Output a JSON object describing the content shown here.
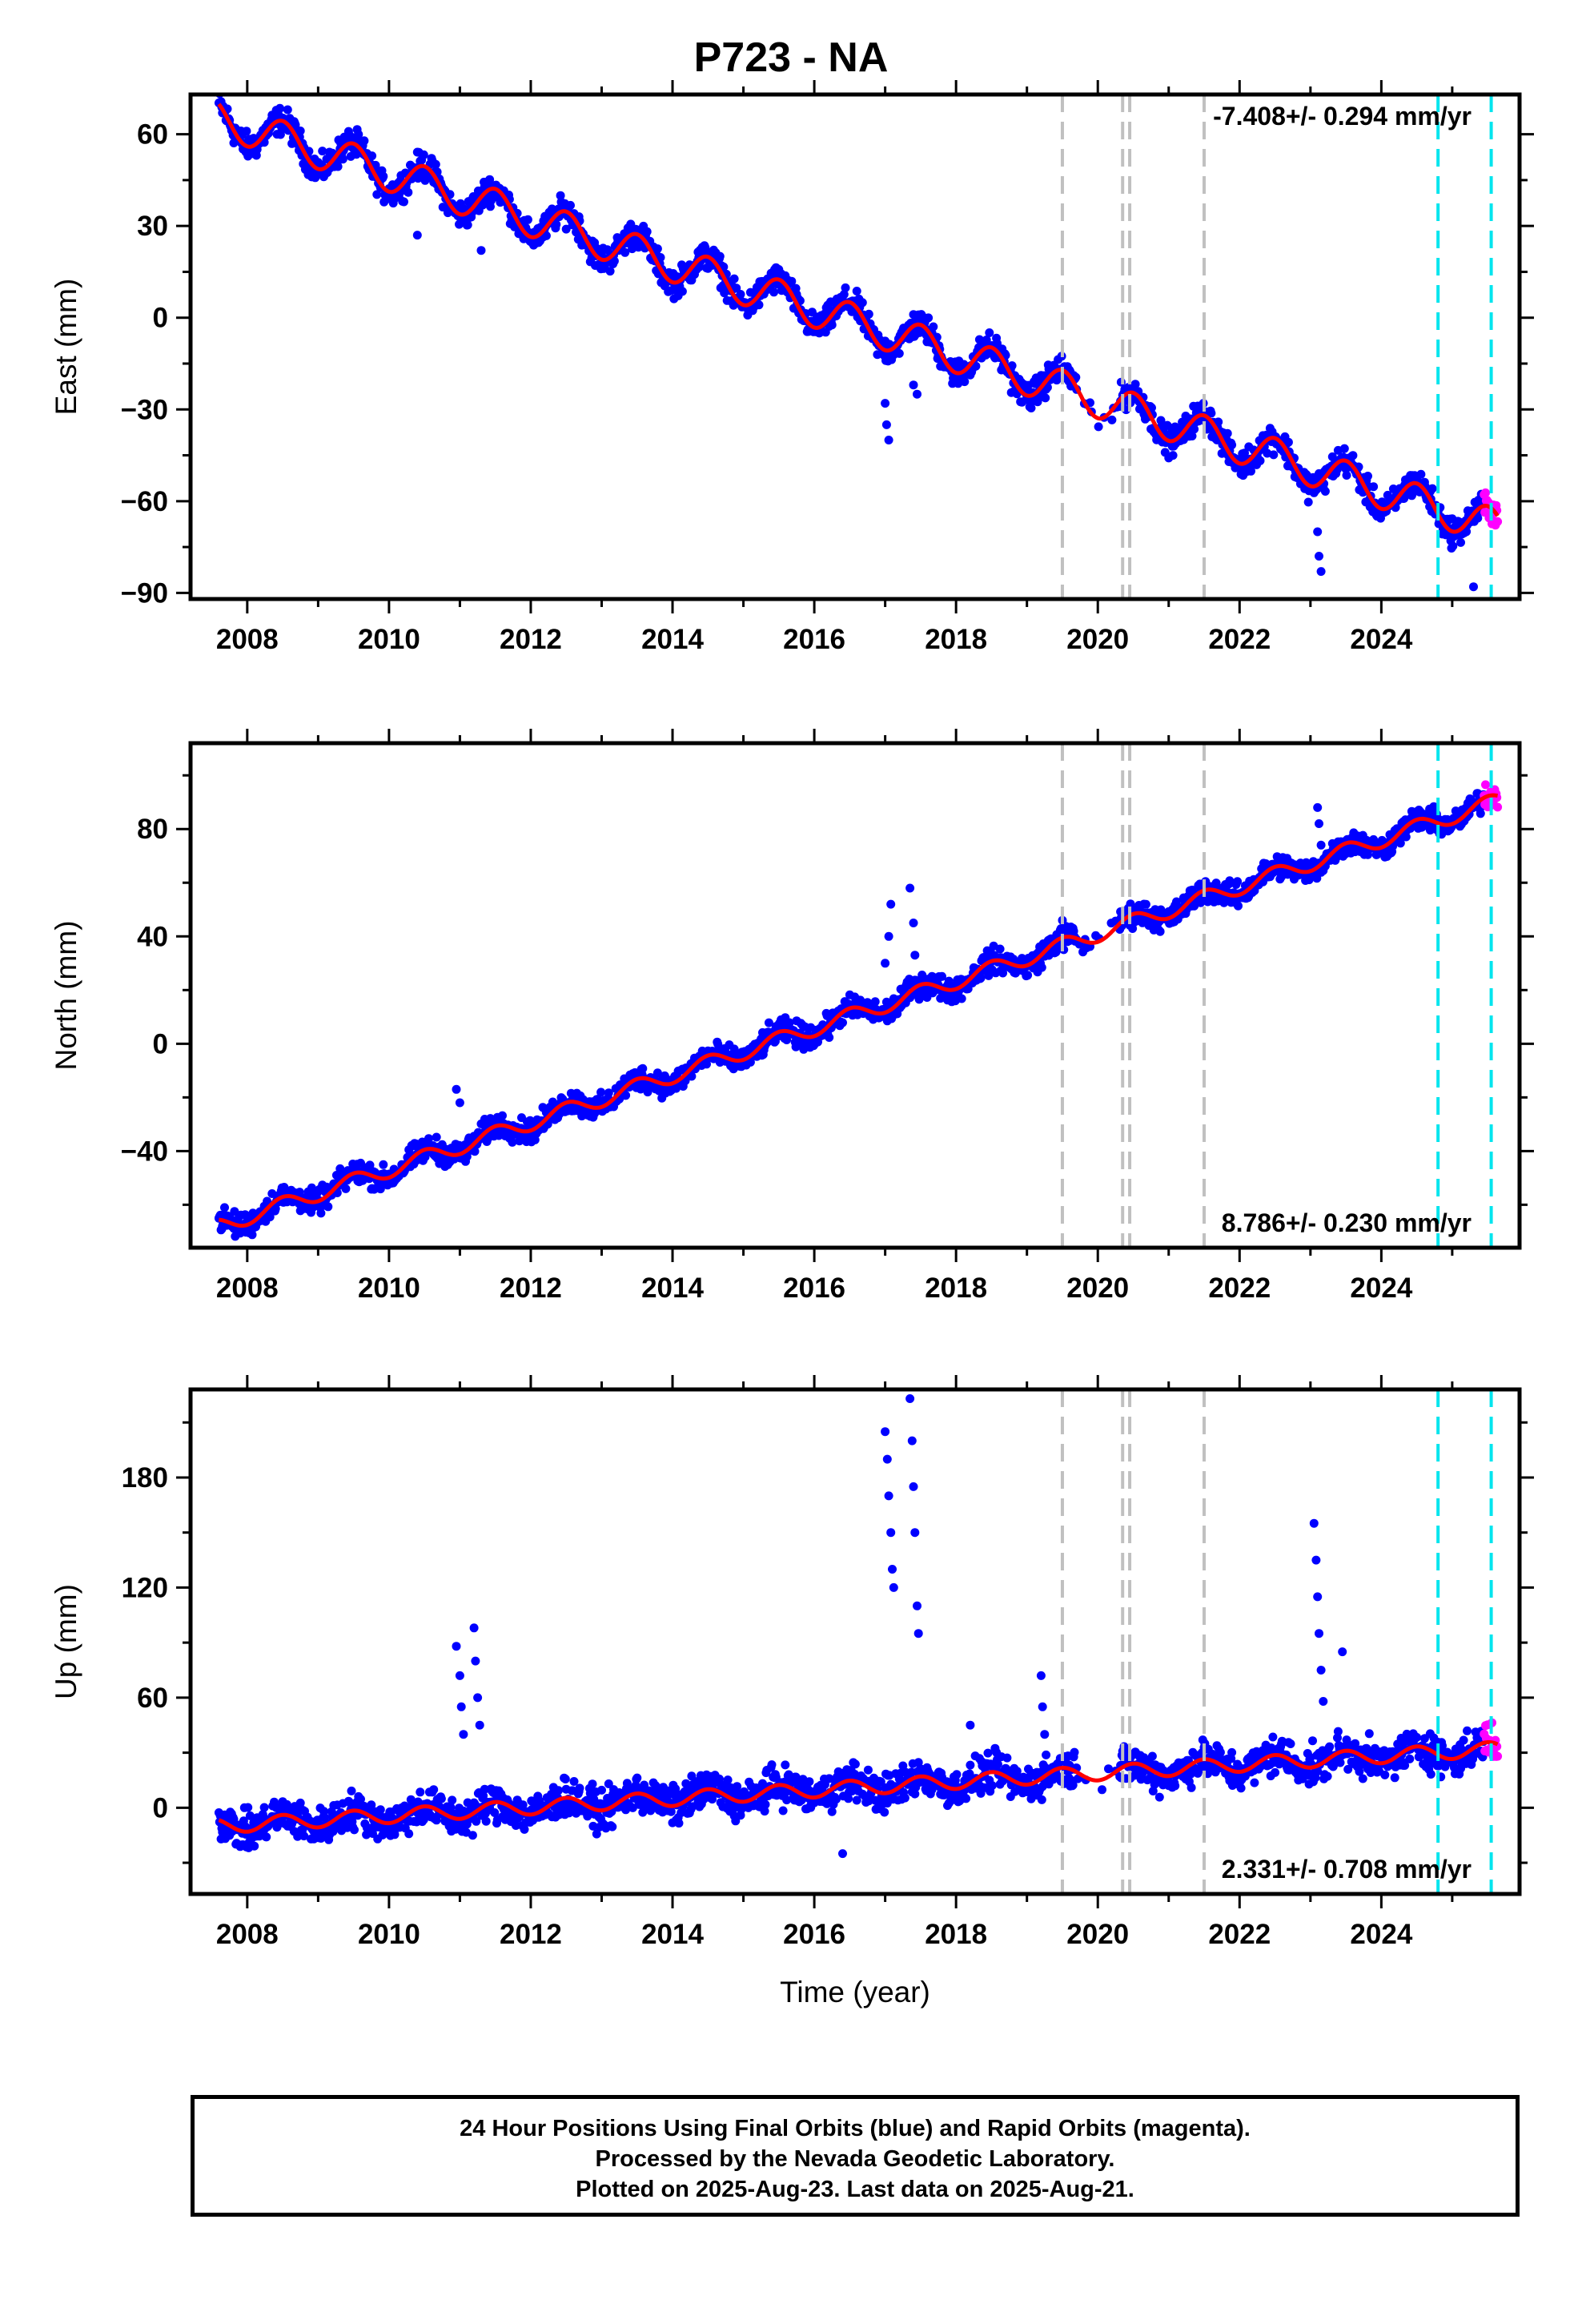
{
  "title": "P723 - NA",
  "footer": {
    "line1": "24 Hour Positions Using Final Orbits (blue) and Rapid Orbits (magenta).",
    "line2": "Processed by the Nevada Geodetic Laboratory.",
    "line3": "Plotted on 2025-Aug-23. Last data on 2025-Aug-21."
  },
  "colors": {
    "final_orbits": "#0000ff",
    "rapid_orbits": "#ff00ff",
    "model_fit": "#ff0000",
    "equipment_change": "#c0c0c0",
    "event_marker": "#00e5ee"
  },
  "chart_data": [
    {
      "type": "scatter",
      "ylabel": "East (mm)",
      "xlabel": "",
      "xlim": [
        2007.2,
        2025.95
      ],
      "ylim": [
        -92,
        73
      ],
      "yticks": [
        -90,
        -60,
        -30,
        0,
        30,
        60
      ],
      "xticks": [
        2008,
        2010,
        2012,
        2014,
        2016,
        2018,
        2020,
        2022,
        2024
      ],
      "annotation": "-7.408+/- 0.294 mm/yr",
      "annotation_position": "top-right",
      "trend": {
        "start_year": 2007.6,
        "start_value": 65,
        "rate": -7.408,
        "seasonal_amplitude": 6
      },
      "outliers": [
        [
          2017.0,
          -28
        ],
        [
          2017.02,
          -35
        ],
        [
          2017.05,
          -40
        ],
        [
          2017.4,
          -22
        ],
        [
          2017.45,
          -25
        ],
        [
          2023.1,
          -70
        ],
        [
          2023.12,
          -78
        ],
        [
          2023.15,
          -83
        ],
        [
          2010.4,
          27
        ],
        [
          2011.3,
          22
        ],
        [
          2025.3,
          -88
        ]
      ],
      "vlines_gray": [
        2019.5,
        2020.35,
        2020.45,
        2021.5
      ],
      "vlines_cyan": [
        2024.8,
        2025.55
      ]
    },
    {
      "type": "scatter",
      "ylabel": "North (mm)",
      "xlabel": "",
      "xlim": [
        2007.2,
        2025.95
      ],
      "ylim": [
        -76,
        112
      ],
      "yticks": [
        -40,
        0,
        40,
        80
      ],
      "xticks": [
        2008,
        2010,
        2012,
        2014,
        2016,
        2018,
        2020,
        2022,
        2024
      ],
      "annotation": "8.786+/- 0.230 mm/yr",
      "annotation_position": "bottom-right",
      "trend": {
        "start_year": 2007.6,
        "start_value": -68,
        "rate": 8.786,
        "seasonal_amplitude": 3
      },
      "outliers": [
        [
          2010.95,
          -17
        ],
        [
          2011.0,
          -22
        ],
        [
          2017.0,
          30
        ],
        [
          2017.05,
          40
        ],
        [
          2017.08,
          52
        ],
        [
          2017.35,
          58
        ],
        [
          2017.4,
          45
        ],
        [
          2017.42,
          33
        ],
        [
          2019.5,
          46
        ],
        [
          2023.1,
          88
        ],
        [
          2023.12,
          82
        ],
        [
          2023.15,
          74
        ]
      ],
      "vlines_gray": [
        2019.5,
        2020.35,
        2020.45,
        2021.5
      ],
      "vlines_cyan": [
        2024.8,
        2025.55
      ]
    },
    {
      "type": "scatter",
      "ylabel": "Up (mm)",
      "xlabel": "Time (year)",
      "xlim": [
        2007.2,
        2025.95
      ],
      "ylim": [
        -47,
        228
      ],
      "yticks": [
        0,
        60,
        120,
        180
      ],
      "xticks": [
        2008,
        2010,
        2012,
        2014,
        2016,
        2018,
        2020,
        2022,
        2024
      ],
      "annotation": "2.331+/- 0.708 mm/yr",
      "annotation_position": "bottom-right",
      "trend": {
        "start_year": 2007.6,
        "start_value": -10,
        "rate": 2.331,
        "seasonal_amplitude": 4
      },
      "outliers": [
        [
          2010.95,
          88
        ],
        [
          2011.0,
          72
        ],
        [
          2011.02,
          55
        ],
        [
          2011.05,
          40
        ],
        [
          2011.2,
          98
        ],
        [
          2011.22,
          80
        ],
        [
          2011.25,
          60
        ],
        [
          2011.28,
          45
        ],
        [
          2017.0,
          205
        ],
        [
          2017.03,
          190
        ],
        [
          2017.05,
          170
        ],
        [
          2017.08,
          150
        ],
        [
          2017.1,
          130
        ],
        [
          2017.12,
          120
        ],
        [
          2017.35,
          223
        ],
        [
          2017.38,
          200
        ],
        [
          2017.4,
          175
        ],
        [
          2017.42,
          150
        ],
        [
          2017.45,
          110
        ],
        [
          2017.47,
          95
        ],
        [
          2018.2,
          45
        ],
        [
          2019.2,
          72
        ],
        [
          2019.22,
          55
        ],
        [
          2019.25,
          40
        ],
        [
          2023.05,
          155
        ],
        [
          2023.08,
          135
        ],
        [
          2023.1,
          115
        ],
        [
          2023.12,
          95
        ],
        [
          2023.15,
          75
        ],
        [
          2023.18,
          58
        ],
        [
          2023.45,
          85
        ],
        [
          2016.4,
          -25
        ]
      ],
      "vlines_gray": [
        2019.5,
        2020.35,
        2020.45,
        2021.5
      ],
      "vlines_cyan": [
        2024.8,
        2025.55
      ]
    }
  ]
}
